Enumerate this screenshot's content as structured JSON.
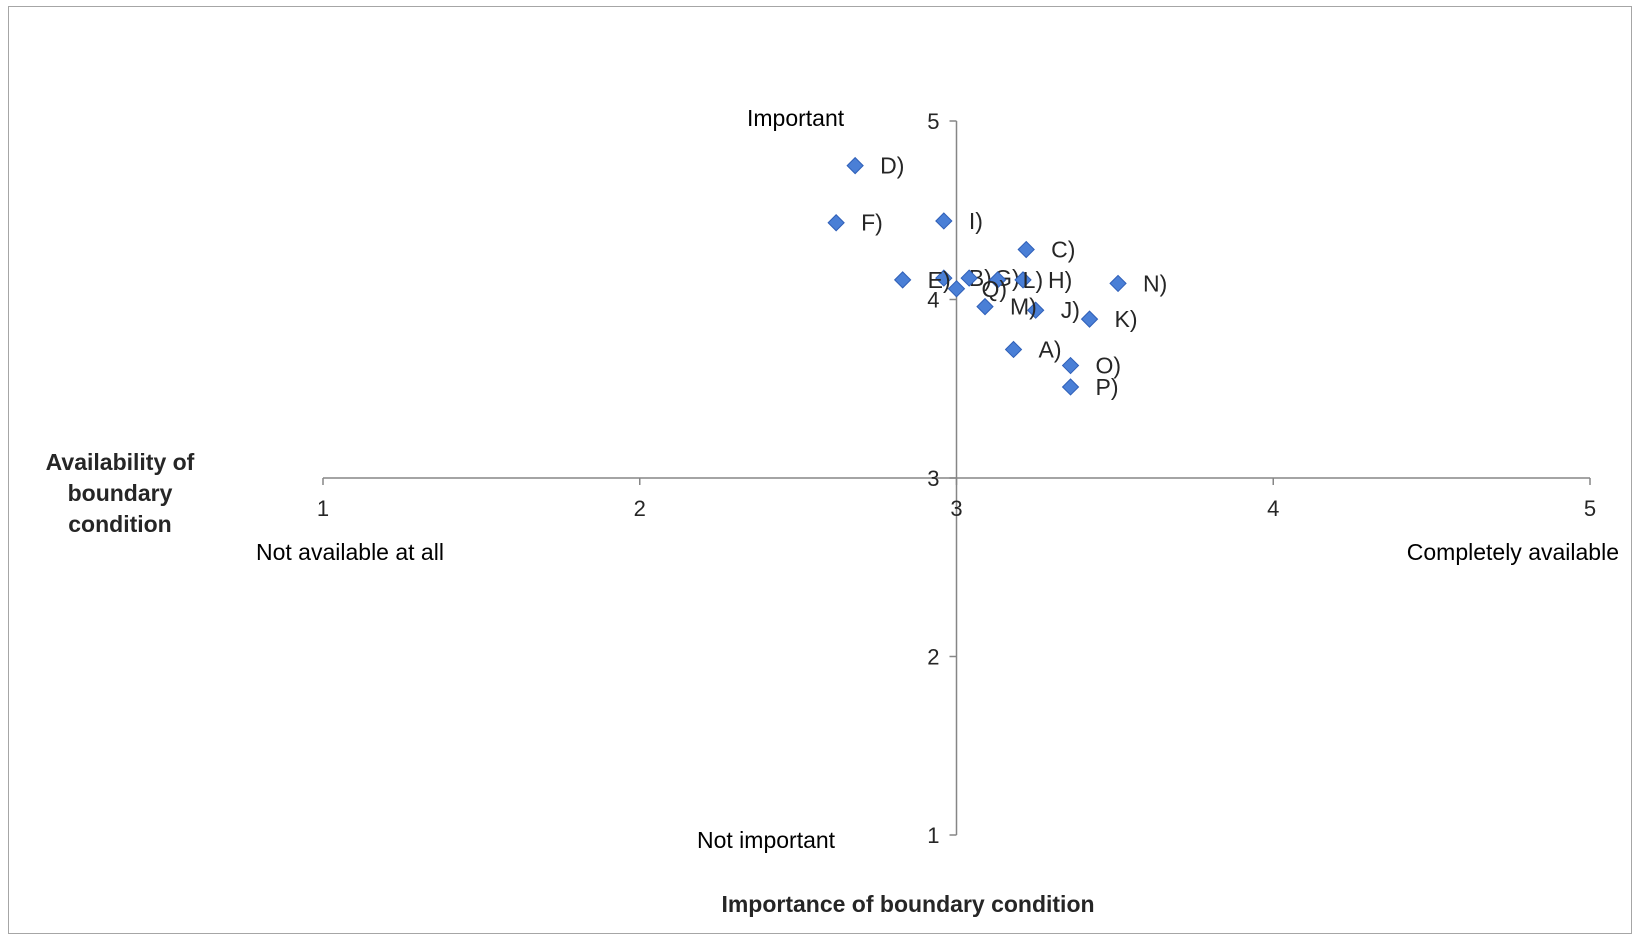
{
  "chart_data": {
    "type": "scatter",
    "xlabel": "Importance of boundary condition",
    "ylabel": "Availability of boundary condition",
    "xlim": [
      1,
      5
    ],
    "ylim": [
      1,
      5
    ],
    "x_ticks": [
      "1",
      "2",
      "3",
      "4",
      "5"
    ],
    "y_ticks": [
      "1",
      "2",
      "3",
      "4",
      "5"
    ],
    "grid": false,
    "annotations": {
      "x_min": "Not available at all",
      "x_max": "Completely available",
      "y_max": "Important",
      "y_min": "Not important"
    },
    "marker_color": "#4a7fd6",
    "points": [
      {
        "label": "A)",
        "x": 3.18,
        "y": 3.72
      },
      {
        "label": "B)",
        "x": 2.96,
        "y": 4.12
      },
      {
        "label": "C)",
        "x": 3.22,
        "y": 4.28
      },
      {
        "label": "D)",
        "x": 2.68,
        "y": 4.75
      },
      {
        "label": "E)",
        "x": 2.83,
        "y": 4.11
      },
      {
        "label": "F)",
        "x": 2.62,
        "y": 4.43
      },
      {
        "label": "G)",
        "x": 3.04,
        "y": 4.12
      },
      {
        "label": "H)",
        "x": 3.21,
        "y": 4.11
      },
      {
        "label": "I)",
        "x": 2.96,
        "y": 4.44
      },
      {
        "label": "J)",
        "x": 3.25,
        "y": 3.94
      },
      {
        "label": "K)",
        "x": 3.42,
        "y": 3.89
      },
      {
        "label": "L)",
        "x": 3.13,
        "y": 4.11
      },
      {
        "label": "M)",
        "x": 3.09,
        "y": 3.96
      },
      {
        "label": "N)",
        "x": 3.51,
        "y": 4.09
      },
      {
        "label": "O)",
        "x": 3.36,
        "y": 3.63
      },
      {
        "label": "P)",
        "x": 3.36,
        "y": 3.51
      },
      {
        "label": "Q)",
        "x": 3.0,
        "y": 4.06
      }
    ]
  }
}
